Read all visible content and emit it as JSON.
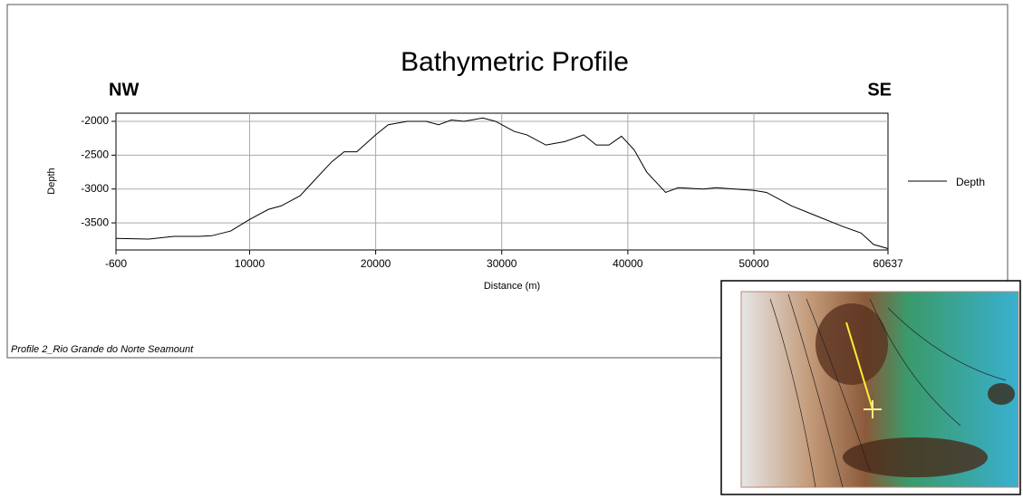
{
  "chart_data": {
    "type": "line",
    "title": "Bathymetric Profile",
    "left_label": "NW",
    "right_label": "SE",
    "ylabel": "Depth",
    "xlabel": "Distance (m)",
    "footer": "Profile 2_Rio Grande do Norte Seamount",
    "xlim": [
      -600,
      60637
    ],
    "ylim": [
      -3900,
      -1880
    ],
    "xticks": [
      -600,
      10000,
      20000,
      30000,
      40000,
      50000,
      60637
    ],
    "yticks": [
      -2000,
      -2500,
      -3000,
      -3500
    ],
    "grid": true,
    "legend": "right",
    "x": [
      -600,
      2000,
      4000,
      6000,
      7000,
      8500,
      10000,
      11500,
      12500,
      14000,
      15000,
      16500,
      17500,
      18500,
      20000,
      21000,
      22500,
      24000,
      25000,
      26000,
      27000,
      28500,
      29500,
      31000,
      32000,
      33500,
      35000,
      36500,
      37500,
      38500,
      39500,
      40500,
      41500,
      43000,
      44000,
      46000,
      47000,
      50000,
      51000,
      53000,
      55000,
      57000,
      58500,
      59500,
      60637
    ],
    "series": [
      {
        "name": "Depth",
        "color": "#000000",
        "values": [
          -3730,
          -3740,
          -3700,
          -3700,
          -3690,
          -3620,
          -3450,
          -3300,
          -3250,
          -3100,
          -2900,
          -2600,
          -2450,
          -2450,
          -2200,
          -2050,
          -2000,
          -2000,
          -2050,
          -1980,
          -2000,
          -1950,
          -2000,
          -2150,
          -2200,
          -2350,
          -2300,
          -2200,
          -2350,
          -2350,
          -2220,
          -2420,
          -2750,
          -3050,
          -2980,
          -3000,
          -2980,
          -3020,
          -3050,
          -3250,
          -3400,
          -3550,
          -3650,
          -3820,
          -3880
        ]
      }
    ]
  }
}
